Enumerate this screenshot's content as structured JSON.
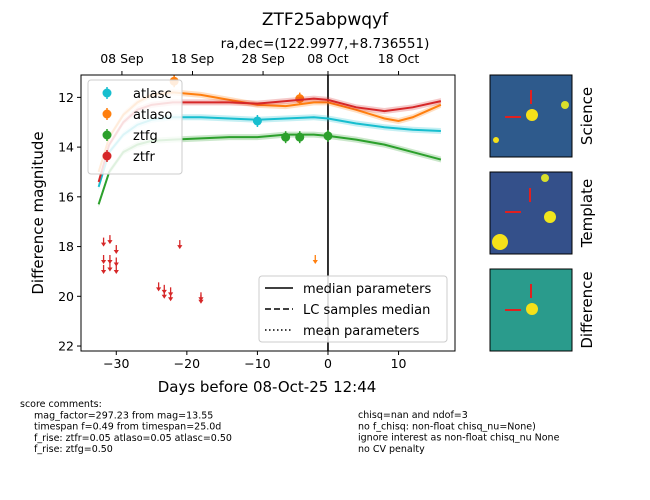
{
  "title": "ZTF25abpwqyf",
  "subtitle": "ra,dec=(122.9977,+8.736551)",
  "chart_data": {
    "type": "line",
    "xlabel": "Days before 08-Oct-25 12:44",
    "ylabel": "Difference magnitude",
    "xlim": [
      -35,
      18
    ],
    "ylim": [
      22.2,
      11.1
    ],
    "inverted_y": true,
    "x_ticks": [
      -30,
      -20,
      -10,
      0,
      10
    ],
    "y_ticks": [
      12,
      14,
      16,
      18,
      20,
      22
    ],
    "top_ticks": [
      {
        "x": -29.2,
        "label": "08 Sep"
      },
      {
        "x": -19.2,
        "label": "18 Sep"
      },
      {
        "x": -9.2,
        "label": "28 Sep"
      },
      {
        "x": 0.0,
        "label": "08 Oct"
      },
      {
        "x": 10.0,
        "label": "18 Oct"
      }
    ],
    "reference_line_x": 0,
    "legend": {
      "placement": "top-left",
      "entries": [
        "atlasc",
        "atlaso",
        "ztfg",
        "ztfr"
      ]
    },
    "legend2": {
      "placement": "bottom-right",
      "entries": [
        "median parameters",
        "LC samples median",
        "mean parameters"
      ]
    },
    "series": [
      {
        "name": "atlasc",
        "color": "#17becf",
        "curve": [
          [
            -32.5,
            15.6
          ],
          [
            -31,
            14.2
          ],
          [
            -29,
            13.5
          ],
          [
            -27,
            13.1
          ],
          [
            -25,
            12.9
          ],
          [
            -22,
            12.8
          ],
          [
            -18,
            12.8
          ],
          [
            -14,
            12.85
          ],
          [
            -10,
            12.9
          ],
          [
            -6,
            12.85
          ],
          [
            -2,
            12.8
          ],
          [
            0,
            12.85
          ],
          [
            4,
            13.05
          ],
          [
            8,
            13.2
          ],
          [
            12,
            13.3
          ],
          [
            16,
            13.35
          ]
        ],
        "points": [
          [
            -10,
            12.95
          ]
        ],
        "upper_limits": []
      },
      {
        "name": "atlaso",
        "color": "#ff7f0e",
        "curve": [
          [
            -32.5,
            15.0
          ],
          [
            -31,
            13.6
          ],
          [
            -29,
            12.7
          ],
          [
            -27,
            12.2
          ],
          [
            -25,
            11.9
          ],
          [
            -22,
            11.8
          ],
          [
            -18,
            11.9
          ],
          [
            -14,
            12.1
          ],
          [
            -10,
            12.3
          ],
          [
            -6,
            12.35
          ],
          [
            -2,
            12.2
          ],
          [
            0,
            12.2
          ],
          [
            4,
            12.5
          ],
          [
            8,
            12.85
          ],
          [
            10,
            12.95
          ],
          [
            12,
            12.8
          ],
          [
            16,
            12.3
          ]
        ],
        "points": [
          [
            -21.8,
            11.35
          ],
          [
            -4,
            12.05
          ]
        ],
        "upper_limits": [
          [
            -1.8,
            18.5
          ]
        ]
      },
      {
        "name": "ztfg",
        "color": "#2ca02c",
        "curve": [
          [
            -32.5,
            16.3
          ],
          [
            -31,
            15.0
          ],
          [
            -29,
            14.2
          ],
          [
            -27,
            13.9
          ],
          [
            -25,
            13.75
          ],
          [
            -22,
            13.7
          ],
          [
            -18,
            13.65
          ],
          [
            -14,
            13.6
          ],
          [
            -10,
            13.6
          ],
          [
            -6,
            13.5
          ],
          [
            -2,
            13.5
          ],
          [
            0,
            13.55
          ],
          [
            4,
            13.7
          ],
          [
            8,
            13.9
          ],
          [
            12,
            14.2
          ],
          [
            16,
            14.5
          ]
        ],
        "points": [
          [
            -6,
            13.6
          ],
          [
            -4,
            13.6
          ],
          [
            0,
            13.55
          ]
        ],
        "upper_limits": []
      },
      {
        "name": "ztfr",
        "color": "#d62728",
        "curve": [
          [
            -32.5,
            15.4
          ],
          [
            -31,
            13.9
          ],
          [
            -29,
            13.0
          ],
          [
            -27,
            12.5
          ],
          [
            -25,
            12.3
          ],
          [
            -22,
            12.2
          ],
          [
            -18,
            12.2
          ],
          [
            -14,
            12.2
          ],
          [
            -10,
            12.25
          ],
          [
            -6,
            12.15
          ],
          [
            -2,
            12.05
          ],
          [
            0,
            12.1
          ],
          [
            4,
            12.4
          ],
          [
            8,
            12.55
          ],
          [
            12,
            12.4
          ],
          [
            16,
            12.15
          ]
        ],
        "points": [],
        "upper_limits": [
          [
            -31.8,
            17.8
          ],
          [
            -30.9,
            17.7
          ],
          [
            -30,
            18.1
          ],
          [
            -31.8,
            18.5
          ],
          [
            -30.9,
            18.5
          ],
          [
            -30,
            18.6
          ],
          [
            -31.8,
            18.9
          ],
          [
            -30.9,
            18.8
          ],
          [
            -30,
            18.9
          ],
          [
            -24,
            19.6
          ],
          [
            -23.2,
            19.7
          ],
          [
            -22.3,
            19.8
          ],
          [
            -23.2,
            19.9
          ],
          [
            -22.3,
            20.0
          ],
          [
            -21,
            17.9
          ],
          [
            -18,
            20.0
          ],
          [
            -18,
            20.1
          ]
        ]
      }
    ]
  },
  "thumbnails": [
    {
      "label": "Science"
    },
    {
      "label": "Template"
    },
    {
      "label": "Difference"
    }
  ],
  "comments": {
    "left": [
      "score comments:",
      "    mag_factor=297.23 from mag=13.55",
      "    timespan f=0.49 from timespan=25.0d",
      "    f_rise: ztfr=0.05 atlaso=0.05 atlasc=0.50",
      "    f_rise: ztfg=0.50"
    ],
    "right": [
      "chisq=nan and ndof=3",
      "no f_chisq: non-float chisq_nu=None)",
      "ignore interest as non-float chisq_nu None",
      "no CV penalty"
    ]
  }
}
